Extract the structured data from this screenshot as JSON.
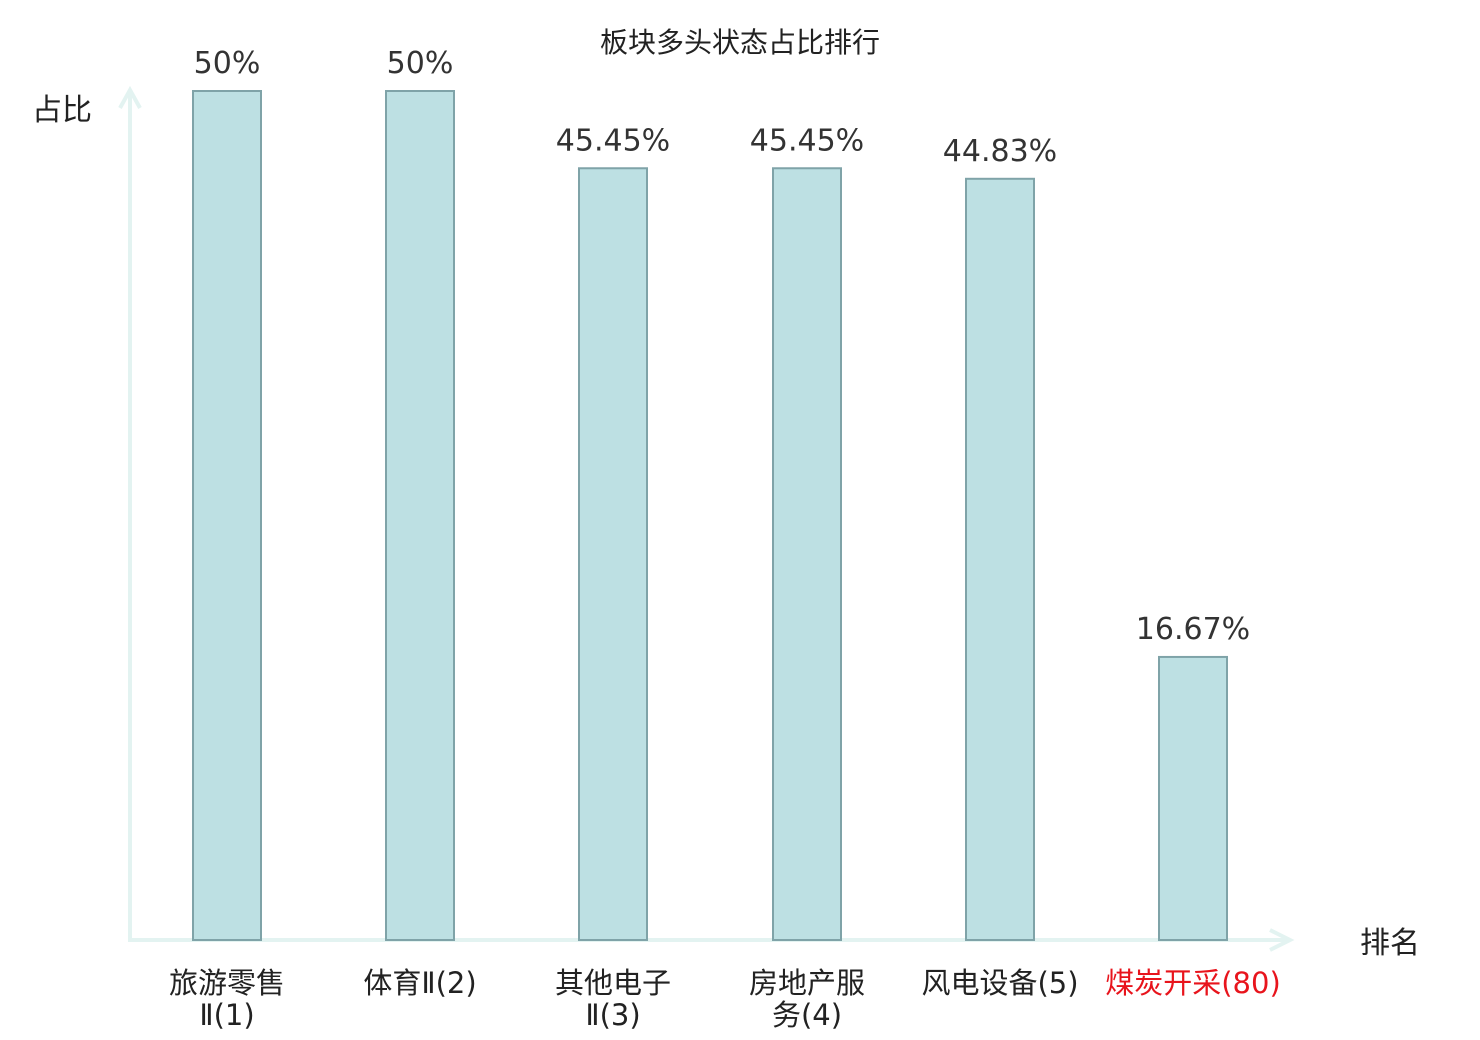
{
  "chart_data": {
    "type": "bar",
    "title": "板块多头状态占比排行",
    "ylabel": "占比",
    "xlabel": "排名",
    "ylim": [
      0,
      50
    ],
    "grid": false,
    "categories": [
      [
        "旅游零售",
        "Ⅱ(1)"
      ],
      [
        "体育Ⅱ(2)"
      ],
      [
        "其他电子",
        "Ⅱ(3)"
      ],
      [
        "房地产服",
        "务(4)"
      ],
      [
        "风电设备(5)"
      ],
      [
        "煤炭开采(80)"
      ]
    ],
    "values": [
      50,
      50,
      45.45,
      45.45,
      44.83,
      16.67
    ],
    "value_labels": [
      "50%",
      "50%",
      "45.45%",
      "45.45%",
      "44.83%",
      "16.67%"
    ],
    "highlight_index": 5
  },
  "colors": {
    "bar_fill": "#bde0e3",
    "bar_stroke": "#7fa3a8",
    "axis": "#e3f3f1",
    "text": "#222222",
    "value_text": "#333333",
    "highlight": "#e8141c"
  }
}
